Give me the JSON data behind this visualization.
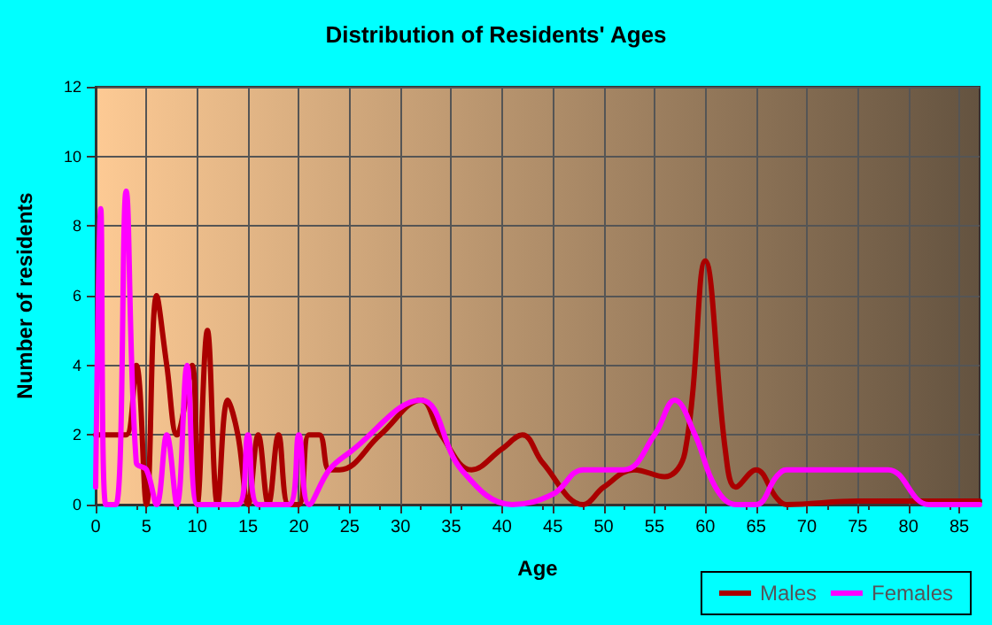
{
  "chart_data": {
    "type": "line",
    "title": "Distribution of Residents' Ages",
    "xlabel": "Age",
    "ylabel": "Number of residents",
    "xlim": [
      0,
      87
    ],
    "xticks": [
      0,
      5,
      10,
      15,
      20,
      25,
      30,
      35,
      40,
      45,
      50,
      55,
      60,
      65,
      70,
      75,
      80,
      85
    ],
    "ylim": [
      0,
      12
    ],
    "yticks": [
      0,
      2,
      4,
      6,
      8,
      10,
      12
    ],
    "grid": true,
    "legend": "bottom right",
    "marker": "none",
    "line_style": "solid",
    "series": [
      {
        "name": "Males",
        "color": "#aa0000",
        "x": [
          0,
          1,
          2,
          3,
          4,
          5,
          6,
          7,
          8,
          9.5,
          10,
          11,
          12,
          13,
          14,
          15,
          16,
          17,
          18,
          19,
          20,
          21,
          22,
          23,
          24,
          28,
          32,
          34,
          37,
          40,
          42,
          44,
          48,
          50,
          53,
          56,
          58,
          60,
          62,
          63,
          65,
          67,
          68,
          75,
          87
        ],
        "values": [
          2,
          2,
          2,
          2,
          4,
          0,
          6,
          4,
          2,
          4,
          0,
          5,
          0,
          3,
          2,
          0,
          2,
          0,
          2,
          0,
          0,
          2,
          2,
          1,
          1,
          2,
          3,
          2,
          1,
          1.6,
          2,
          1.2,
          0,
          0.5,
          1,
          0.8,
          1.5,
          7,
          1.5,
          0.5,
          1,
          0.2,
          0,
          0.1,
          0.1
        ]
      },
      {
        "name": "Females",
        "color": "#ff00ff",
        "x": [
          0,
          0.5,
          1,
          2,
          3,
          4,
          5,
          6,
          7,
          8,
          9,
          10,
          11,
          14,
          15,
          16,
          19,
          20,
          21,
          23,
          25,
          32,
          36,
          41,
          45,
          48,
          52,
          55,
          57,
          59,
          61,
          63,
          65,
          67,
          68,
          75,
          78,
          82,
          87
        ],
        "values": [
          0.5,
          8.5,
          0,
          0,
          9,
          1.2,
          1,
          0,
          2,
          0,
          4,
          0,
          0,
          0,
          2,
          0,
          0,
          2,
          0,
          1,
          1.5,
          3,
          1,
          0,
          0.3,
          1,
          1,
          2,
          3,
          2,
          0.5,
          0,
          0,
          0.8,
          1,
          1,
          1,
          0,
          0
        ]
      }
    ]
  }
}
